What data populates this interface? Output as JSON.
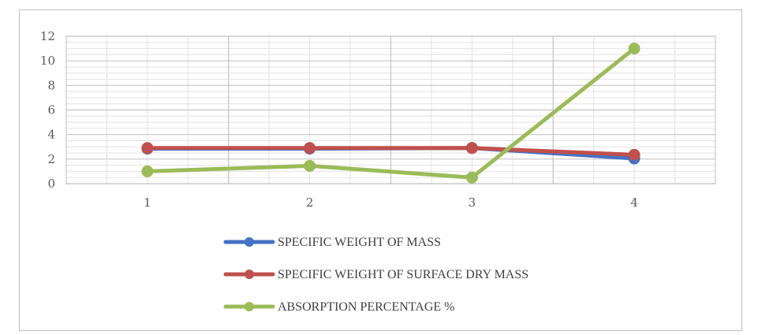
{
  "chart_data": {
    "type": "line",
    "title": "",
    "xlabel": "",
    "ylabel": "",
    "categories": [
      "1",
      "2",
      "3",
      "4"
    ],
    "ylim": [
      0,
      12
    ],
    "yticks": [
      "0",
      "2",
      "4",
      "6",
      "8",
      "10",
      "12"
    ],
    "grid": true,
    "legend_position": "bottom",
    "series": [
      {
        "name": "SPECIFIC WEIGHT OF MASS",
        "color": "#4472c4",
        "values": [
          2.85,
          2.85,
          2.9,
          2.05
        ]
      },
      {
        "name": "SPECIFIC WEIGHT OF SURFACE DRY MASS",
        "color": "#c0504d",
        "values": [
          2.9,
          2.9,
          2.9,
          2.35
        ]
      },
      {
        "name": "ABSORPTION PERCENTAGE %",
        "color": "#9bbb59",
        "values": [
          1.0,
          1.45,
          0.5,
          11.0
        ]
      }
    ]
  }
}
